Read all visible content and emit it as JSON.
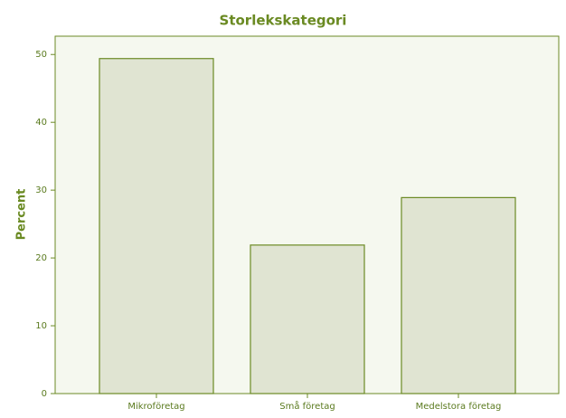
{
  "chart_data": {
    "type": "bar",
    "title": "Storlekskategori",
    "y_label": "Percent",
    "categories": [
      "Mikroföretag",
      "Små företag",
      "Medelstora företag"
    ],
    "values": [
      49.4,
      21.9,
      28.9
    ],
    "color": "#e0e4d2",
    "edge_color": "#6b8a24",
    "ylim": [
      0,
      52.7
    ],
    "yticks": [
      0,
      10,
      20,
      30,
      40,
      50
    ],
    "grid": false
  }
}
